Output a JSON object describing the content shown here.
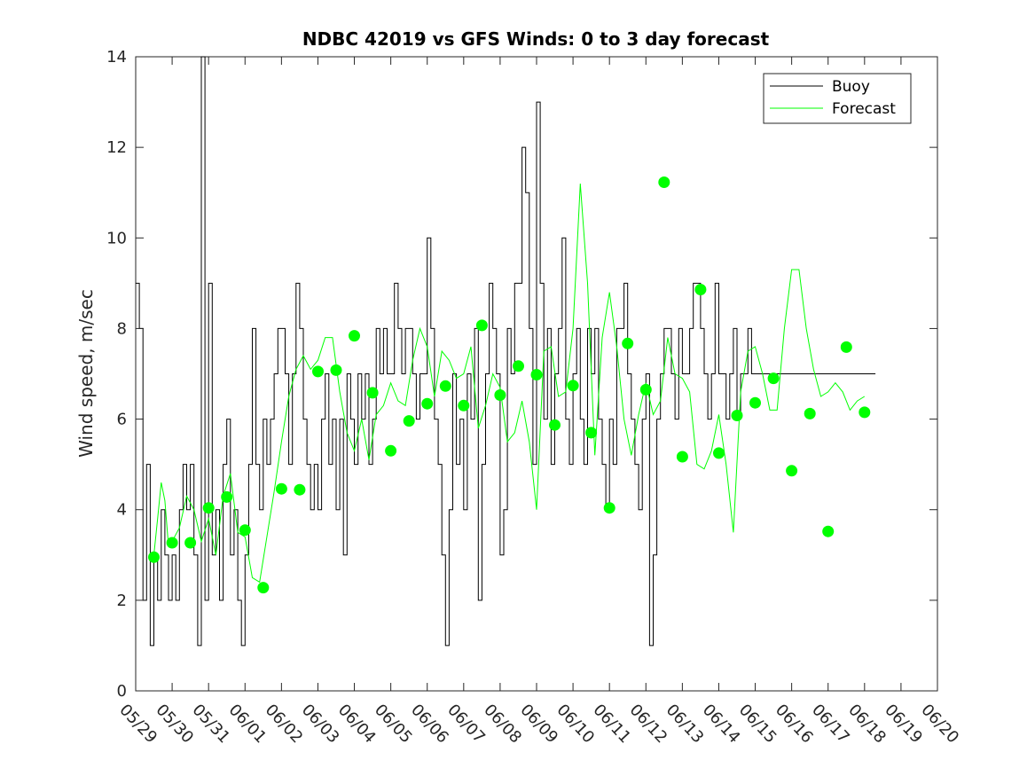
{
  "chart_data": {
    "type": "line",
    "title": "NDBC 42019 vs GFS Winds: 0 to 3 day forecast",
    "xlabel": "",
    "ylabel": "Wind speed, m/sec",
    "xlim": [
      0,
      22
    ],
    "ylim": [
      0,
      14
    ],
    "yticks": [
      0,
      2,
      4,
      6,
      8,
      10,
      12,
      14
    ],
    "xtick_labels": [
      "05/29",
      "05/30",
      "05/31",
      "06/01",
      "06/02",
      "06/03",
      "06/04",
      "06/05",
      "06/06",
      "06/07",
      "06/08",
      "06/09",
      "06/10",
      "06/11",
      "06/12",
      "06/13",
      "06/14",
      "06/15",
      "06/16",
      "06/17",
      "06/18",
      "06/19",
      "06/20"
    ],
    "x_unit": "days since 05/29",
    "grid": false,
    "legend_position": "top-right",
    "colors": {
      "buoy": "#000000",
      "forecast": "#00ff00"
    },
    "legend": [
      "Buoy",
      "Forecast"
    ],
    "buoy": {
      "name": "Buoy",
      "x": [
        0,
        0.1,
        0.2,
        0.3,
        0.4,
        0.5,
        0.6,
        0.7,
        0.8,
        0.9,
        1.0,
        1.1,
        1.2,
        1.3,
        1.4,
        1.5,
        1.6,
        1.7,
        1.8,
        1.9,
        2.0,
        2.1,
        2.2,
        2.3,
        2.4,
        2.5,
        2.6,
        2.7,
        2.8,
        2.9,
        3.0,
        3.1,
        3.2,
        3.3,
        3.4,
        3.5,
        3.6,
        3.7,
        3.8,
        3.9,
        4.0,
        4.1,
        4.2,
        4.3,
        4.4,
        4.5,
        4.6,
        4.7,
        4.8,
        4.9,
        5.0,
        5.1,
        5.2,
        5.3,
        5.4,
        5.5,
        5.6,
        5.7,
        5.8,
        5.9,
        6.0,
        6.1,
        6.2,
        6.3,
        6.4,
        6.5,
        6.6,
        6.7,
        6.8,
        6.9,
        7.0,
        7.1,
        7.2,
        7.3,
        7.4,
        7.5,
        7.6,
        7.7,
        7.8,
        7.9,
        8.0,
        8.1,
        8.2,
        8.3,
        8.4,
        8.5,
        8.6,
        8.7,
        8.8,
        8.9,
        9.0,
        9.1,
        9.2,
        9.3,
        9.4,
        9.5,
        9.6,
        9.7,
        9.8,
        9.9,
        10.0,
        10.1,
        10.2,
        10.3,
        10.4,
        10.5,
        10.6,
        10.7,
        10.8,
        10.9,
        11.0,
        11.1,
        11.2,
        11.3,
        11.4,
        11.5,
        11.6,
        11.7,
        11.8,
        11.9,
        12.0,
        12.1,
        12.2,
        12.3,
        12.4,
        12.5,
        12.6,
        12.7,
        12.8,
        12.9,
        13.0,
        13.1,
        13.2,
        13.3,
        13.4,
        13.5,
        13.6,
        13.7,
        13.8,
        13.9,
        14.0,
        14.1,
        14.2,
        14.3,
        14.4,
        14.5,
        14.6,
        14.7,
        14.8,
        14.9,
        15.0,
        15.1,
        15.2,
        15.3,
        15.4,
        15.5,
        15.6,
        15.7,
        15.8,
        15.9,
        16.0,
        16.1,
        16.2,
        16.3,
        16.4,
        16.5,
        16.6,
        16.7,
        16.8,
        16.9,
        17.0,
        17.1,
        17.2,
        17.3,
        17.4,
        17.5,
        17.6,
        17.7,
        17.8,
        17.9,
        18.0,
        18.1,
        18.2,
        18.3,
        18.4,
        18.5,
        18.6,
        18.7,
        18.8,
        18.9,
        19.0,
        19.1,
        19.2,
        19.3,
        19.4,
        19.5,
        19.6,
        19.7,
        19.8,
        19.9,
        20.0,
        20.1,
        20.2,
        20.3
      ],
      "values": [
        9,
        8,
        2,
        5,
        1,
        3,
        2,
        4,
        3,
        2,
        3,
        2,
        4,
        5,
        4,
        5,
        3,
        1,
        14,
        2,
        9,
        3,
        4,
        2,
        5,
        6,
        3,
        4,
        2,
        1,
        3,
        5,
        8,
        5,
        4,
        6,
        5,
        6,
        7,
        8,
        8,
        7,
        5,
        7,
        9,
        8,
        6,
        5,
        4,
        5,
        4,
        6,
        7,
        5,
        6,
        4,
        6,
        3,
        7,
        6,
        5,
        7,
        6,
        7,
        5,
        6,
        8,
        7,
        8,
        7,
        7,
        9,
        8,
        7,
        8,
        8,
        7,
        6,
        7,
        7,
        10,
        8,
        6,
        5,
        3,
        1,
        4,
        7,
        5,
        6,
        4,
        7,
        6,
        8,
        2,
        5,
        7,
        9,
        8,
        7,
        3,
        4,
        8,
        7,
        9,
        9,
        12,
        11,
        8,
        5,
        13,
        9,
        6,
        8,
        5,
        7,
        8,
        10,
        6,
        5,
        7,
        8,
        6,
        5,
        8,
        7,
        8,
        6,
        5,
        4,
        6,
        5,
        8,
        8,
        9,
        7,
        6,
        5,
        4,
        6,
        7,
        1,
        3,
        6,
        7,
        8,
        8,
        7,
        6,
        8,
        7,
        7,
        8,
        9,
        9,
        8,
        7,
        6,
        7,
        9,
        7,
        7,
        6,
        7,
        8,
        6,
        7,
        7,
        8,
        7,
        7,
        7,
        7,
        7,
        7,
        7,
        7,
        7,
        7,
        7,
        7,
        7,
        7,
        7,
        7,
        7,
        7,
        7,
        7,
        7,
        7,
        7,
        7,
        7,
        7,
        7,
        7,
        7,
        7,
        7,
        7,
        7,
        7,
        7
      ]
    },
    "forecast_series": [
      {
        "name": "Forecast",
        "x": [
          0.5,
          0.6,
          0.7,
          0.8,
          0.9,
          1.0,
          1.2,
          1.4,
          1.6,
          1.8,
          2.0,
          2.2,
          2.4,
          2.6,
          2.8,
          3.0,
          3.2,
          3.4,
          3.6,
          3.8,
          4.0,
          4.2,
          4.4,
          4.6,
          4.8,
          5.0,
          5.2,
          5.4,
          5.6,
          5.8,
          6.0,
          6.2,
          6.4,
          6.6,
          6.8,
          7.0,
          7.2,
          7.4,
          7.6,
          7.8,
          8.0,
          8.2,
          8.4,
          8.6,
          8.8,
          9.0,
          9.2,
          9.4,
          9.6,
          9.8,
          10.0,
          10.2,
          10.4,
          10.6,
          10.8,
          11.0,
          11.2,
          11.4,
          11.6,
          11.8,
          12.0,
          12.2,
          12.4,
          12.6,
          12.8,
          13.0,
          13.2,
          13.4,
          13.6,
          13.8,
          14.0,
          14.2,
          14.4,
          14.6,
          14.8,
          15.0,
          15.2,
          15.4,
          15.6,
          15.8,
          16.0,
          16.2,
          16.4,
          16.6,
          16.8,
          17.0,
          17.2,
          17.4,
          17.6,
          17.8,
          18.0,
          18.2,
          18.4,
          18.6,
          18.8,
          19.0,
          19.2,
          19.4,
          19.6,
          19.8,
          20.0
        ],
        "values": [
          3.0,
          3.8,
          4.6,
          4.2,
          3.2,
          3.3,
          3.6,
          4.3,
          4.0,
          3.3,
          3.8,
          3.0,
          4.3,
          4.8,
          3.5,
          3.4,
          2.5,
          2.4,
          3.4,
          4.4,
          5.5,
          6.5,
          7.1,
          7.4,
          7.1,
          7.3,
          7.8,
          7.8,
          6.6,
          5.7,
          5.3,
          6.0,
          5.1,
          6.1,
          6.3,
          6.8,
          6.4,
          6.3,
          7.3,
          8.0,
          7.6,
          6.5,
          7.5,
          7.3,
          6.9,
          7.0,
          7.6,
          5.8,
          6.3,
          7.0,
          6.7,
          5.5,
          5.7,
          6.4,
          5.5,
          4.0,
          7.5,
          7.6,
          6.5,
          6.6,
          8.0,
          11.2,
          9.0,
          5.2,
          7.8,
          8.8,
          7.6,
          6.0,
          5.2,
          6.1,
          6.8,
          6.1,
          6.4,
          7.8,
          7.0,
          6.9,
          6.6,
          5.0,
          4.9,
          5.3,
          6.1,
          5.0,
          3.5,
          6.6,
          7.5,
          7.6,
          7.0,
          6.2,
          6.2,
          8.0,
          9.3,
          9.3,
          8.0,
          7.1,
          6.5,
          6.6,
          6.8,
          6.6,
          6.2,
          6.4,
          6.5
        ]
      }
    ],
    "markers": {
      "name": "Forecast",
      "x": [
        0.5,
        1.0,
        1.5,
        2.0,
        2.5,
        3.0,
        3.5,
        4.0,
        4.5,
        5.0,
        5.5,
        6.0,
        6.5,
        7.0,
        7.5,
        8.0,
        8.5,
        9.0,
        9.5,
        10.0,
        10.5,
        11.0,
        11.5,
        12.0,
        12.5,
        13.0,
        13.5,
        14.0,
        14.5,
        15.0,
        15.5,
        16.0,
        16.5,
        17.0,
        17.5,
        18.0,
        18.5,
        19.0,
        19.5,
        20.0
      ],
      "values": [
        2.95,
        3.27,
        3.27,
        4.04,
        4.28,
        3.55,
        2.28,
        4.46,
        4.44,
        7.05,
        7.08,
        7.84,
        6.58,
        5.3,
        5.96,
        6.34,
        6.73,
        6.3,
        8.07,
        6.53,
        7.17,
        6.98,
        5.87,
        6.74,
        5.7,
        4.04,
        7.67,
        6.65,
        11.23,
        5.17,
        8.86,
        5.25,
        6.08,
        6.36,
        6.9,
        4.86,
        6.12,
        3.52,
        7.59,
        6.15
      ]
    }
  }
}
